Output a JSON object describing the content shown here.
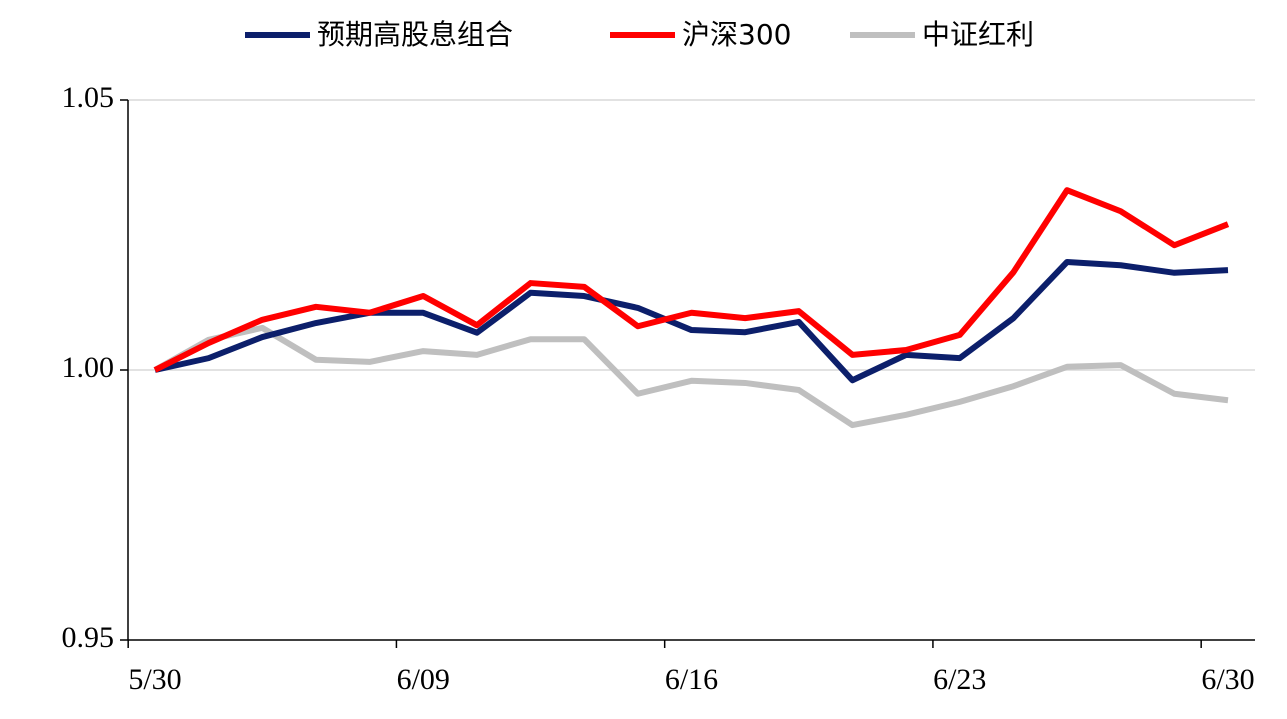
{
  "chart_data": {
    "type": "line",
    "categories": [
      "5/30",
      null,
      null,
      null,
      null,
      "6/09",
      null,
      null,
      null,
      null,
      "6/16",
      null,
      null,
      null,
      null,
      "6/23",
      null,
      null,
      null,
      null,
      "6/30"
    ],
    "series": [
      {
        "name": "预期高股息组合",
        "color": "#0c1f6b",
        "values": [
          1.0,
          1.0022,
          1.0061,
          1.0087,
          1.0106,
          1.0106,
          1.0069,
          1.0143,
          1.0137,
          1.0115,
          1.0074,
          1.007,
          1.0089,
          0.9981,
          1.0028,
          1.0022,
          1.0096,
          1.02,
          1.0194,
          1.018,
          1.0185
        ]
      },
      {
        "name": "沪深300",
        "color": "#ff0000",
        "values": [
          1.0,
          1.005,
          1.0093,
          1.0117,
          1.0106,
          1.0137,
          1.0083,
          1.0161,
          1.0154,
          1.0081,
          1.0106,
          1.0096,
          1.0109,
          1.0028,
          1.0037,
          1.0065,
          1.0181,
          1.0333,
          1.0294,
          1.0231,
          1.027
        ]
      },
      {
        "name": "中证红利",
        "color": "#bfbfbf",
        "values": [
          1.0,
          1.0056,
          1.0078,
          1.0019,
          1.0015,
          1.0035,
          1.0028,
          1.0057,
          1.0057,
          0.9956,
          0.998,
          0.9976,
          0.9963,
          0.9898,
          0.9917,
          0.9941,
          0.997,
          1.0006,
          1.0009,
          0.9956,
          0.9944
        ]
      }
    ],
    "ylim": [
      0.95,
      1.05
    ],
    "yticks": [
      0.95,
      {
        "value": 1,
        "label": "1.00"
      },
      1.05
    ],
    "grid": true
  }
}
